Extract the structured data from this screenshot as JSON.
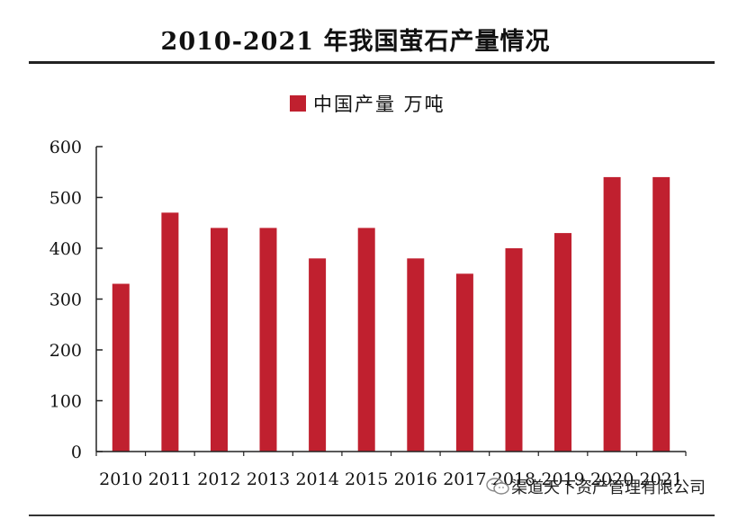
{
  "header": {
    "title": "2010-2021 年我国萤石产量情况"
  },
  "legend": {
    "label": "中国产量 万吨",
    "color": "#c0202f"
  },
  "watermark": {
    "text": "渠道天下资产管理有限公司",
    "icon": "wechat-icon"
  },
  "chart_data": {
    "type": "bar",
    "title": "2010-2021 年我国萤石产量情况",
    "categories": [
      "2010",
      "2011",
      "2012",
      "2013",
      "2014",
      "2015",
      "2016",
      "2017",
      "2018",
      "2019",
      "2020",
      "2021"
    ],
    "series": [
      {
        "name": "中国产量 万吨",
        "color": "#c0202f",
        "values": [
          330,
          470,
          440,
          440,
          380,
          440,
          380,
          350,
          400,
          430,
          540,
          540
        ]
      }
    ],
    "ylim": [
      0,
      600
    ],
    "yticks": [
      "0",
      "100",
      "200",
      "300",
      "400",
      "500",
      "600"
    ],
    "xlabel": "",
    "ylabel": "",
    "grid": false,
    "legend_position": "top-center"
  }
}
